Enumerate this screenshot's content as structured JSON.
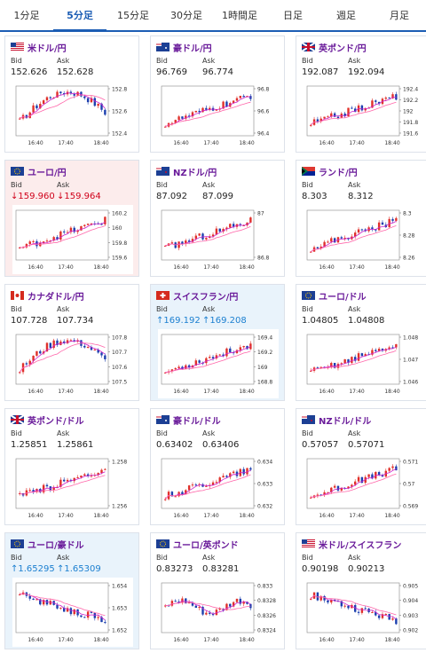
{
  "tabs": [
    "1分足",
    "5分足",
    "15分足",
    "30分足",
    "1時間足",
    "日足",
    "週足",
    "月足"
  ],
  "active_tab": "5分足",
  "labels": {
    "bid": "Bid",
    "ask": "Ask"
  },
  "x_ticks": [
    "16:40",
    "17:40",
    "18:40"
  ],
  "colors": {
    "up": "#e0302a",
    "down": "#1c3fae",
    "ma1": "#cc22cc",
    "ma2": "#ff66aa",
    "tab_accent": "#1c5db4"
  },
  "cards": [
    {
      "name": "米ドル/円",
      "bid": "152.626",
      "ask": "152.628",
      "trend": "none",
      "flag": "us",
      "y_ticks": [
        "152.8",
        "152.6",
        "152.4"
      ],
      "shape": "rise_fall"
    },
    {
      "name": "豪ドル/円",
      "bid": "96.769",
      "ask": "96.774",
      "trend": "none",
      "flag": "au",
      "y_ticks": [
        "96.8",
        "96.6",
        "96.4"
      ],
      "shape": "rise"
    },
    {
      "name": "英ポンド/円",
      "bid": "192.087",
      "ask": "192.094",
      "trend": "none",
      "flag": "gb",
      "y_ticks": [
        "192.4",
        "192.2",
        "192",
        "191.8",
        "191.6"
      ],
      "shape": "rise"
    },
    {
      "name": "ユーロ/円",
      "bid": "159.960",
      "ask": "159.964",
      "trend": "down",
      "flag": "eu",
      "y_ticks": [
        "160.2",
        "160",
        "159.8",
        "159.6"
      ],
      "shape": "rise"
    },
    {
      "name": "NZドル/円",
      "bid": "87.092",
      "ask": "87.099",
      "trend": "none",
      "flag": "nz",
      "y_ticks": [
        "87",
        "86.8"
      ],
      "shape": "rise"
    },
    {
      "name": "ランド/円",
      "bid": "8.303",
      "ask": "8.312",
      "trend": "none",
      "flag": "za",
      "y_ticks": [
        "8.3",
        "8.28",
        "8.26"
      ],
      "shape": "rise"
    },
    {
      "name": "カナダドル/円",
      "bid": "107.728",
      "ask": "107.734",
      "trend": "none",
      "flag": "ca",
      "y_ticks": [
        "107.8",
        "107.7",
        "107.6",
        "107.5"
      ],
      "shape": "rise_fall"
    },
    {
      "name": "スイスフラン/円",
      "bid": "169.192",
      "ask": "169.208",
      "trend": "up",
      "flag": "ch",
      "y_ticks": [
        "169.4",
        "169.2",
        "169",
        "168.8"
      ],
      "shape": "rise"
    },
    {
      "name": "ユーロ/ドル",
      "bid": "1.04805",
      "ask": "1.04808",
      "trend": "none",
      "flag": "euus",
      "y_ticks": [
        "1.048",
        "1.047",
        "1.046"
      ],
      "shape": "rise"
    },
    {
      "name": "英ポンド/ドル",
      "bid": "1.25851",
      "ask": "1.25861",
      "trend": "none",
      "flag": "gbus",
      "y_ticks": [
        "1.258",
        "1.256"
      ],
      "shape": "rise"
    },
    {
      "name": "豪ドル/ドル",
      "bid": "0.63402",
      "ask": "0.63406",
      "trend": "none",
      "flag": "auus",
      "y_ticks": [
        "0.634",
        "0.633",
        "0.632"
      ],
      "shape": "rise"
    },
    {
      "name": "NZドル/ドル",
      "bid": "0.57057",
      "ask": "0.57071",
      "trend": "none",
      "flag": "nzus",
      "y_ticks": [
        "0.571",
        "0.57",
        "0.569"
      ],
      "shape": "rise"
    },
    {
      "name": "ユーロ/豪ドル",
      "bid": "1.65295",
      "ask": "1.65309",
      "trend": "up",
      "flag": "euau",
      "y_ticks": [
        "1.654",
        "1.653",
        "1.652"
      ],
      "shape": "fall"
    },
    {
      "name": "ユーロ/英ポンド",
      "bid": "0.83273",
      "ask": "0.83281",
      "trend": "none",
      "flag": "eugb",
      "y_ticks": [
        "0.833",
        "0.8328",
        "0.8326",
        "0.8324"
      ],
      "shape": "flat"
    },
    {
      "name": "米ドル/スイスフラン",
      "bid": "0.90198",
      "ask": "0.90213",
      "trend": "none",
      "flag": "usch",
      "y_ticks": [
        "0.905",
        "0.904",
        "0.903",
        "0.902"
      ],
      "shape": "fall"
    }
  ]
}
